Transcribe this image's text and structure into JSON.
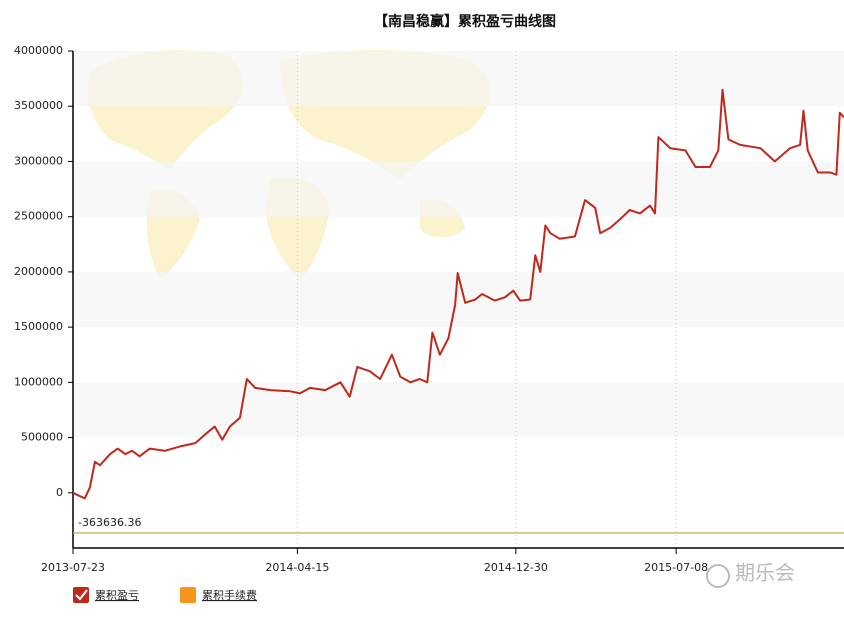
{
  "chart_data": {
    "type": "line",
    "title": "【南昌稳赢】累积盈亏曲线图",
    "x": [
      "2013-07-23",
      "2013-07-31",
      "2013-08-06",
      "2013-08-12",
      "2013-08-18",
      "2013-08-24",
      "2013-09-05",
      "2013-09-14",
      "2013-09-23",
      "2013-10-01",
      "2013-10-10",
      "2013-10-22",
      "2013-11-09",
      "2013-11-27",
      "2013-12-15",
      "2013-12-27",
      "2014-01-07",
      "2014-01-16",
      "2014-01-25",
      "2014-02-06",
      "2014-02-14",
      "2014-02-24",
      "2014-03-14",
      "2014-04-06",
      "2014-04-18",
      "2014-04-30",
      "2014-05-18",
      "2014-06-05",
      "2014-06-16",
      "2014-06-25",
      "2014-07-10",
      "2014-07-22",
      "2014-08-05",
      "2014-08-15",
      "2014-08-27",
      "2014-09-07",
      "2014-09-16",
      "2014-09-22",
      "2014-10-01",
      "2014-10-11",
      "2014-10-19",
      "2014-10-22",
      "2014-10-31",
      "2014-11-12",
      "2014-11-20",
      "2014-12-05",
      "2014-12-17",
      "2014-12-27",
      "2015-01-04",
      "2015-01-16",
      "2015-01-22",
      "2015-01-28",
      "2015-02-03",
      "2015-02-09",
      "2015-02-20",
      "2015-03-10",
      "2015-03-22",
      "2015-04-03",
      "2015-04-09",
      "2015-04-21",
      "2015-05-03",
      "2015-05-14",
      "2015-05-26",
      "2015-06-07",
      "2015-06-13",
      "2015-06-17",
      "2015-07-01",
      "2015-07-19",
      "2015-07-31",
      "2015-08-17",
      "2015-08-27",
      "2015-09-01",
      "2015-09-08",
      "2015-09-22",
      "2015-10-16",
      "2015-11-02",
      "2015-11-20",
      "2015-12-02",
      "2015-12-06",
      "2015-12-11",
      "2015-12-23",
      "2016-01-07",
      "2016-01-14",
      "2016-01-18",
      "2016-01-23"
    ],
    "series": [
      {
        "name": "累积盈亏",
        "color": "#c0281c",
        "values": [
          0,
          -30000,
          -50000,
          50000,
          280000,
          250000,
          350000,
          400000,
          350000,
          380000,
          330000,
          400000,
          380000,
          420000,
          450000,
          530000,
          600000,
          480000,
          600000,
          680000,
          1030000,
          950000,
          930000,
          920000,
          900000,
          950000,
          930000,
          1000000,
          870000,
          1140000,
          1100000,
          1030000,
          1250000,
          1050000,
          1000000,
          1030000,
          1000000,
          1450000,
          1250000,
          1400000,
          1700000,
          1990000,
          1720000,
          1750000,
          1800000,
          1740000,
          1770000,
          1830000,
          1740000,
          1750000,
          2150000,
          2000000,
          2420000,
          2350000,
          2300000,
          2320000,
          2650000,
          2580000,
          2350000,
          2400000,
          2480000,
          2560000,
          2530000,
          2600000,
          2530000,
          3220000,
          3120000,
          3100000,
          2950000,
          2950000,
          3100000,
          3650000,
          3200000,
          3150000,
          3120000,
          3000000,
          3120000,
          3150000,
          3460000,
          3100000,
          2900000,
          2900000,
          2880000,
          3440000,
          3400000
        ]
      }
    ],
    "legend_items": [
      {
        "name": "累积盈亏",
        "color": "#c0281c"
      },
      {
        "name": "累积手续费",
        "color": "#f7941d"
      }
    ],
    "reference_line": {
      "value": -363636.36,
      "color": "#b5a642"
    },
    "xlim": [
      "2013-07-23",
      "2016-01-23"
    ],
    "xticks": [
      "2013-07-23",
      "2014-04-15",
      "2014-12-30",
      "2015-07-08"
    ],
    "ylim": [
      -500000,
      4000000
    ],
    "yticks": [
      0,
      500000,
      1000000,
      1500000,
      2000000,
      2500000,
      3000000,
      3500000,
      4000000
    ],
    "grid": true,
    "watermark": "期乐会"
  }
}
